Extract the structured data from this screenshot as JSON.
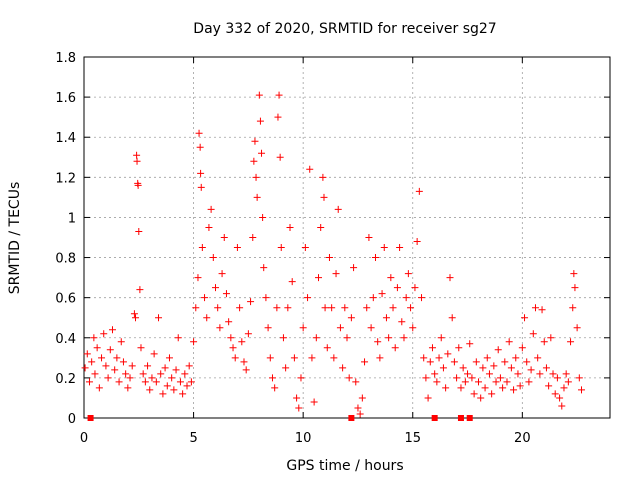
{
  "chart_data": {
    "type": "scatter",
    "title": "Day 332 of 2020, SRMTID for receiver sg27",
    "xlabel": "GPS time / hours",
    "ylabel": "SRMTID / TECUs",
    "xlim": [
      0,
      24
    ],
    "ylim": [
      0,
      1.8
    ],
    "x_ticks": [
      0,
      5,
      10,
      15,
      20
    ],
    "y_ticks": [
      0,
      0.2,
      0.4,
      0.6,
      0.8,
      1,
      1.2,
      1.4,
      1.6,
      1.8
    ],
    "x_tick_labels": [
      "0",
      "5",
      "10",
      "15",
      "20"
    ],
    "y_tick_labels": [
      "0",
      "0.2",
      "0.4",
      "0.6",
      "0.8",
      "1",
      "1.2",
      "1.4",
      "1.6",
      "1.8"
    ],
    "grid": true,
    "marker": "+",
    "color": "#ff0000",
    "series": [
      {
        "name": "SRMTID",
        "points": [
          [
            0.05,
            0.25
          ],
          [
            0.15,
            0.32
          ],
          [
            0.25,
            0.18
          ],
          [
            0.35,
            0.28
          ],
          [
            0.45,
            0.4
          ],
          [
            0.5,
            0.22
          ],
          [
            0.6,
            0.35
          ],
          [
            0.7,
            0.15
          ],
          [
            0.8,
            0.3
          ],
          [
            0.9,
            0.42
          ],
          [
            1.0,
            0.26
          ],
          [
            1.1,
            0.2
          ],
          [
            1.2,
            0.34
          ],
          [
            1.3,
            0.44
          ],
          [
            1.4,
            0.24
          ],
          [
            1.5,
            0.3
          ],
          [
            1.6,
            0.18
          ],
          [
            1.7,
            0.38
          ],
          [
            1.8,
            0.28
          ],
          [
            1.9,
            0.22
          ],
          [
            2.0,
            0.15
          ],
          [
            2.1,
            0.2
          ],
          [
            2.2,
            0.26
          ],
          [
            2.3,
            0.52
          ],
          [
            2.35,
            0.5
          ],
          [
            2.4,
            1.31
          ],
          [
            2.42,
            1.28
          ],
          [
            2.45,
            1.17
          ],
          [
            2.47,
            1.16
          ],
          [
            2.5,
            0.93
          ],
          [
            2.55,
            0.64
          ],
          [
            2.6,
            0.35
          ],
          [
            2.7,
            0.22
          ],
          [
            2.8,
            0.18
          ],
          [
            2.9,
            0.26
          ],
          [
            3.0,
            0.14
          ],
          [
            3.1,
            0.2
          ],
          [
            3.2,
            0.32
          ],
          [
            3.3,
            0.18
          ],
          [
            3.4,
            0.5
          ],
          [
            3.5,
            0.22
          ],
          [
            3.6,
            0.12
          ],
          [
            3.7,
            0.25
          ],
          [
            3.8,
            0.16
          ],
          [
            3.9,
            0.3
          ],
          [
            4.0,
            0.2
          ],
          [
            4.1,
            0.14
          ],
          [
            4.2,
            0.24
          ],
          [
            4.3,
            0.4
          ],
          [
            4.4,
            0.18
          ],
          [
            4.5,
            0.12
          ],
          [
            4.6,
            0.22
          ],
          [
            4.7,
            0.16
          ],
          [
            4.8,
            0.26
          ],
          [
            4.9,
            0.18
          ],
          [
            5.0,
            0.38
          ],
          [
            5.1,
            0.55
          ],
          [
            5.2,
            0.7
          ],
          [
            5.25,
            1.42
          ],
          [
            5.3,
            1.35
          ],
          [
            5.32,
            1.22
          ],
          [
            5.35,
            1.15
          ],
          [
            5.4,
            0.85
          ],
          [
            5.5,
            0.6
          ],
          [
            5.6,
            0.5
          ],
          [
            5.7,
            0.95
          ],
          [
            5.8,
            1.04
          ],
          [
            5.9,
            0.8
          ],
          [
            6.0,
            0.65
          ],
          [
            6.1,
            0.55
          ],
          [
            6.2,
            0.45
          ],
          [
            6.3,
            0.72
          ],
          [
            6.4,
            0.9
          ],
          [
            6.5,
            0.62
          ],
          [
            6.6,
            0.48
          ],
          [
            6.7,
            0.4
          ],
          [
            6.8,
            0.35
          ],
          [
            6.9,
            0.3
          ],
          [
            7.0,
            0.85
          ],
          [
            7.1,
            0.55
          ],
          [
            7.2,
            0.38
          ],
          [
            7.3,
            0.28
          ],
          [
            7.4,
            0.24
          ],
          [
            7.5,
            0.42
          ],
          [
            7.6,
            0.58
          ],
          [
            7.7,
            0.9
          ],
          [
            7.75,
            1.28
          ],
          [
            7.8,
            1.38
          ],
          [
            7.85,
            1.2
          ],
          [
            7.9,
            1.1
          ],
          [
            8.0,
            1.61
          ],
          [
            8.05,
            1.48
          ],
          [
            8.1,
            1.32
          ],
          [
            8.15,
            1.0
          ],
          [
            8.2,
            0.75
          ],
          [
            8.3,
            0.6
          ],
          [
            8.4,
            0.45
          ],
          [
            8.5,
            0.3
          ],
          [
            8.6,
            0.2
          ],
          [
            8.7,
            0.15
          ],
          [
            8.8,
            0.55
          ],
          [
            8.85,
            1.5
          ],
          [
            8.9,
            1.61
          ],
          [
            8.95,
            1.3
          ],
          [
            9.0,
            0.85
          ],
          [
            9.1,
            0.4
          ],
          [
            9.2,
            0.25
          ],
          [
            9.3,
            0.55
          ],
          [
            9.4,
            0.95
          ],
          [
            9.5,
            0.68
          ],
          [
            9.6,
            0.3
          ],
          [
            9.7,
            0.1
          ],
          [
            9.8,
            0.05
          ],
          [
            9.9,
            0.2
          ],
          [
            10.0,
            0.45
          ],
          [
            10.1,
            0.85
          ],
          [
            10.2,
            0.6
          ],
          [
            10.3,
            1.24
          ],
          [
            10.4,
            0.3
          ],
          [
            10.5,
            0.08
          ],
          [
            10.6,
            0.4
          ],
          [
            10.7,
            0.7
          ],
          [
            10.8,
            0.95
          ],
          [
            10.9,
            1.2
          ],
          [
            10.95,
            1.1
          ],
          [
            11.0,
            0.55
          ],
          [
            11.1,
            0.35
          ],
          [
            11.2,
            0.8
          ],
          [
            11.3,
            0.55
          ],
          [
            11.4,
            0.3
          ],
          [
            11.5,
            0.72
          ],
          [
            11.6,
            1.04
          ],
          [
            11.7,
            0.45
          ],
          [
            11.8,
            0.25
          ],
          [
            11.9,
            0.55
          ],
          [
            12.0,
            0.4
          ],
          [
            12.1,
            0.2
          ],
          [
            12.2,
            0.5
          ],
          [
            12.3,
            0.75
          ],
          [
            12.4,
            0.18
          ],
          [
            12.5,
            0.05
          ],
          [
            12.6,
            0.02
          ],
          [
            12.7,
            0.1
          ],
          [
            12.8,
            0.28
          ],
          [
            12.9,
            0.55
          ],
          [
            13.0,
            0.9
          ],
          [
            13.1,
            0.45
          ],
          [
            13.2,
            0.6
          ],
          [
            13.3,
            0.8
          ],
          [
            13.4,
            0.38
          ],
          [
            13.5,
            0.3
          ],
          [
            13.6,
            0.62
          ],
          [
            13.7,
            0.85
          ],
          [
            13.8,
            0.5
          ],
          [
            13.9,
            0.4
          ],
          [
            14.0,
            0.7
          ],
          [
            14.1,
            0.55
          ],
          [
            14.2,
            0.35
          ],
          [
            14.3,
            0.65
          ],
          [
            14.4,
            0.85
          ],
          [
            14.5,
            0.48
          ],
          [
            14.6,
            0.4
          ],
          [
            14.7,
            0.6
          ],
          [
            14.8,
            0.72
          ],
          [
            14.9,
            0.55
          ],
          [
            15.0,
            0.45
          ],
          [
            15.1,
            0.65
          ],
          [
            15.2,
            0.88
          ],
          [
            15.3,
            1.13
          ],
          [
            15.4,
            0.6
          ],
          [
            15.5,
            0.3
          ],
          [
            15.6,
            0.2
          ],
          [
            15.7,
            0.1
          ],
          [
            15.8,
            0.28
          ],
          [
            15.9,
            0.35
          ],
          [
            16.0,
            0.22
          ],
          [
            16.1,
            0.18
          ],
          [
            16.2,
            0.3
          ],
          [
            16.3,
            0.4
          ],
          [
            16.4,
            0.25
          ],
          [
            16.5,
            0.15
          ],
          [
            16.6,
            0.32
          ],
          [
            16.7,
            0.7
          ],
          [
            16.8,
            0.5
          ],
          [
            16.9,
            0.28
          ],
          [
            17.0,
            0.2
          ],
          [
            17.1,
            0.35
          ],
          [
            17.2,
            0.15
          ],
          [
            17.3,
            0.25
          ],
          [
            17.4,
            0.18
          ],
          [
            17.5,
            0.22
          ],
          [
            17.6,
            0.37
          ],
          [
            17.7,
            0.2
          ],
          [
            17.8,
            0.12
          ],
          [
            17.9,
            0.28
          ],
          [
            18.0,
            0.18
          ],
          [
            18.1,
            0.1
          ],
          [
            18.2,
            0.25
          ],
          [
            18.3,
            0.15
          ],
          [
            18.4,
            0.3
          ],
          [
            18.5,
            0.22
          ],
          [
            18.6,
            0.12
          ],
          [
            18.7,
            0.26
          ],
          [
            18.8,
            0.18
          ],
          [
            18.9,
            0.34
          ],
          [
            19.0,
            0.2
          ],
          [
            19.1,
            0.15
          ],
          [
            19.2,
            0.28
          ],
          [
            19.3,
            0.18
          ],
          [
            19.4,
            0.38
          ],
          [
            19.5,
            0.25
          ],
          [
            19.6,
            0.14
          ],
          [
            19.7,
            0.3
          ],
          [
            19.8,
            0.22
          ],
          [
            19.9,
            0.16
          ],
          [
            20.0,
            0.35
          ],
          [
            20.1,
            0.5
          ],
          [
            20.2,
            0.28
          ],
          [
            20.3,
            0.18
          ],
          [
            20.4,
            0.24
          ],
          [
            20.5,
            0.42
          ],
          [
            20.6,
            0.55
          ],
          [
            20.7,
            0.3
          ],
          [
            20.8,
            0.22
          ],
          [
            20.9,
            0.54
          ],
          [
            21.0,
            0.38
          ],
          [
            21.1,
            0.25
          ],
          [
            21.2,
            0.16
          ],
          [
            21.3,
            0.4
          ],
          [
            21.4,
            0.22
          ],
          [
            21.5,
            0.12
          ],
          [
            21.6,
            0.2
          ],
          [
            21.7,
            0.1
          ],
          [
            21.8,
            0.06
          ],
          [
            21.9,
            0.15
          ],
          [
            22.0,
            0.22
          ],
          [
            22.1,
            0.18
          ],
          [
            22.2,
            0.38
          ],
          [
            22.3,
            0.55
          ],
          [
            22.35,
            0.72
          ],
          [
            22.4,
            0.65
          ],
          [
            22.5,
            0.45
          ],
          [
            22.6,
            0.2
          ],
          [
            22.7,
            0.14
          ]
        ]
      }
    ],
    "no_data_markers_x": [
      0.3,
      12.2,
      16.0,
      17.2,
      17.6
    ]
  }
}
